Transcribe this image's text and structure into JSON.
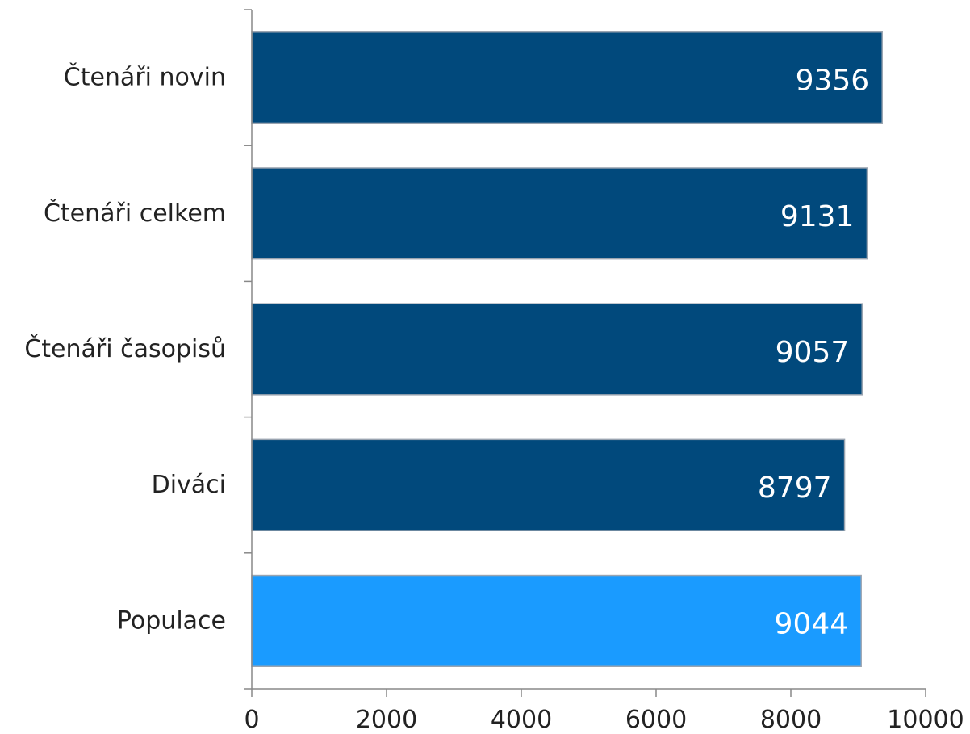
{
  "chart_data": {
    "type": "bar",
    "orientation": "horizontal",
    "categories": [
      "Čtenáři novin",
      "Čtenáři celkem",
      "Čtenáři časopisů",
      "Diváci",
      "Populace"
    ],
    "values": [
      9356,
      9131,
      9057,
      8797,
      9044
    ],
    "data_labels": [
      "9356",
      "9131",
      "9057",
      "8797",
      "9044"
    ],
    "bar_colors": [
      "#01497c",
      "#01497c",
      "#01497c",
      "#01497c",
      "#1a9bff"
    ],
    "xlim": [
      0,
      10000
    ],
    "x_ticks": [
      0,
      2000,
      4000,
      6000,
      8000,
      10000
    ],
    "x_tick_labels": [
      "0",
      "2000",
      "4000",
      "6000",
      "8000",
      "10000"
    ],
    "grid": false,
    "legend": "none",
    "title": "",
    "xlabel": "",
    "ylabel": ""
  }
}
